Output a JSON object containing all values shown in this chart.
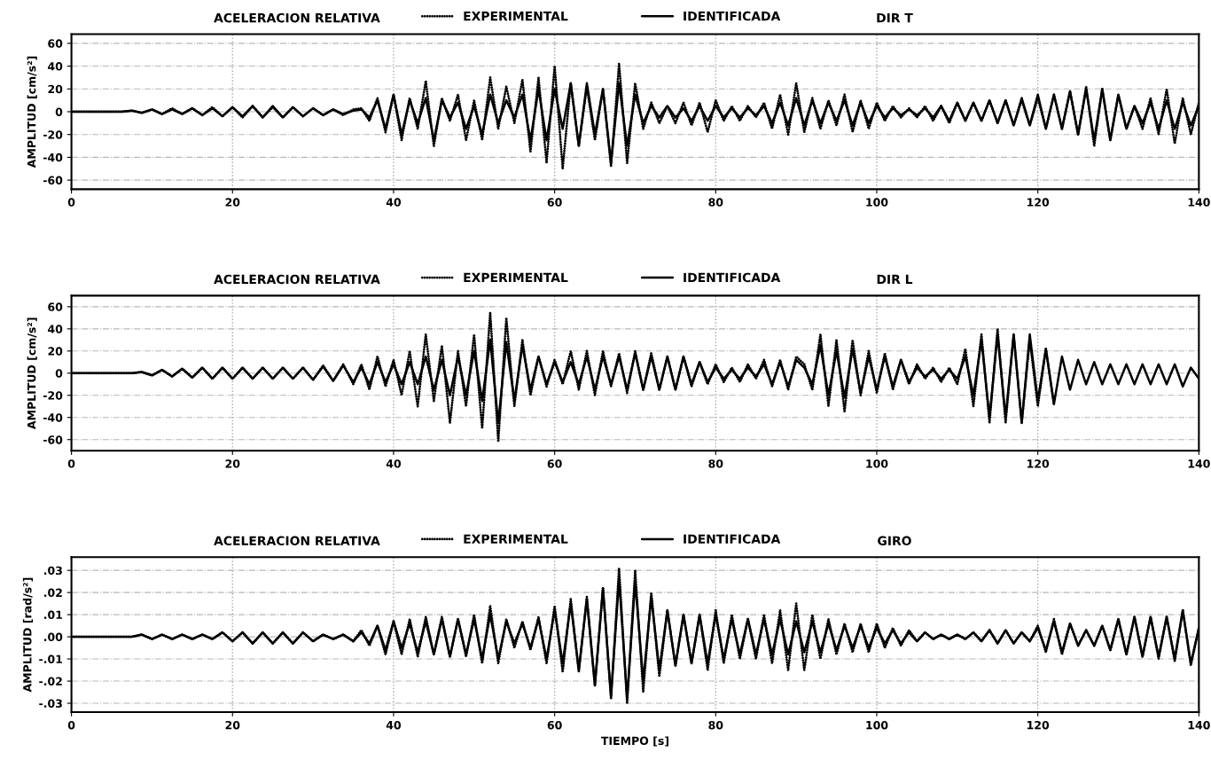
{
  "chart_data": [
    {
      "type": "line",
      "title": "ACELERACION RELATIVA",
      "subtitle": "DIR T",
      "ylabel": "AMPLITUD [cm/s²]",
      "x": [
        0,
        1.25,
        2.5,
        3.75,
        5,
        6.25,
        7.5,
        8.75,
        10,
        11.25,
        12.5,
        13.75,
        15,
        16.25,
        17.5,
        18.75,
        20,
        21.25,
        22.5,
        23.75,
        25,
        26.25,
        27.5,
        28.75,
        30,
        31.25,
        32.5,
        33.75,
        35,
        36,
        37,
        38,
        39,
        40,
        41,
        42,
        43,
        44,
        45,
        46,
        47,
        48,
        49,
        50,
        51,
        52,
        53,
        54,
        55,
        56,
        57,
        58,
        59,
        60,
        61,
        62,
        63,
        64,
        65,
        66,
        67,
        68,
        69,
        70,
        71,
        72,
        73,
        74,
        75,
        76,
        77,
        78,
        79,
        80,
        81,
        82,
        83,
        84,
        85,
        86,
        87,
        88,
        89,
        90,
        91,
        92,
        93,
        94,
        95,
        96,
        97,
        98,
        99,
        100,
        101,
        102,
        103,
        104,
        105,
        106,
        107,
        108,
        109,
        110,
        111,
        112,
        113,
        114,
        115,
        116,
        117,
        118,
        119,
        120,
        121,
        122,
        123,
        124,
        125,
        126,
        127,
        128,
        129,
        130,
        131,
        132,
        133,
        134,
        135,
        136,
        137,
        138,
        139,
        140
      ],
      "xlim": [
        0,
        140
      ],
      "xticks": [
        0,
        20,
        40,
        60,
        80,
        100,
        120,
        140
      ],
      "ylim": [
        -68,
        68
      ],
      "yticks": [
        -60,
        -40,
        -20,
        0,
        20,
        40,
        60
      ],
      "grid": true,
      "legend": "top",
      "series": [
        {
          "name": "EXPERIMENTAL",
          "color": "#000000",
          "line_style": "dotted",
          "values": [
            0,
            0,
            0,
            0,
            0,
            0,
            1,
            -1,
            2,
            -2,
            3,
            -2,
            3,
            -3,
            4,
            -4,
            4,
            -5,
            5,
            -5,
            4,
            -5,
            4,
            -4,
            3,
            -3,
            2,
            -3,
            2,
            3,
            -8,
            12,
            -18,
            15,
            -25,
            12,
            -15,
            27,
            -30,
            12,
            -8,
            15,
            -25,
            10,
            -25,
            30,
            -15,
            22,
            -10,
            28,
            -35,
            30,
            -45,
            40,
            -50,
            25,
            -30,
            22,
            -25,
            20,
            -48,
            42,
            -45,
            25,
            -15,
            8,
            -10,
            5,
            -10,
            8,
            -12,
            8,
            -18,
            10,
            -8,
            5,
            -8,
            5,
            -5,
            8,
            -15,
            15,
            -20,
            25,
            -18,
            12,
            -15,
            10,
            -12,
            15,
            -18,
            10,
            -15,
            8,
            -8,
            5,
            -5,
            3,
            -5,
            5,
            -8,
            5,
            -10,
            8,
            -8,
            8,
            -8,
            10,
            -10,
            10,
            -12,
            10,
            -12,
            12,
            -15,
            15,
            -15,
            18,
            -20,
            22,
            -30,
            20,
            -25,
            15,
            -15,
            5,
            -15,
            12,
            -20,
            20,
            -28,
            12,
            -20,
            8
          ]
        },
        {
          "name": "IDENTIFICADA",
          "color": "#000000",
          "line_style": "solid",
          "values": [
            0,
            0,
            0,
            0,
            0,
            0,
            1,
            -1,
            2,
            -2,
            2,
            -2,
            3,
            -3,
            3,
            -4,
            4,
            -4,
            5,
            -5,
            5,
            -5,
            4,
            -4,
            3,
            -3,
            2,
            -2,
            1,
            2,
            -5,
            10,
            -15,
            15,
            -20,
            10,
            -10,
            12,
            -25,
            10,
            -5,
            8,
            -15,
            5,
            -20,
            15,
            -10,
            10,
            -5,
            15,
            -25,
            20,
            -25,
            20,
            -15,
            25,
            -30,
            25,
            -20,
            20,
            -45,
            25,
            -30,
            15,
            -10,
            5,
            -5,
            5,
            -5,
            3,
            -8,
            5,
            -8,
            5,
            -5,
            3,
            -5,
            3,
            -3,
            5,
            -10,
            8,
            -12,
            12,
            -12,
            10,
            -10,
            8,
            -8,
            10,
            -12,
            8,
            -10,
            5,
            -5,
            3,
            -3,
            2,
            -3,
            3,
            -5,
            5,
            -8,
            8,
            -8,
            8,
            -8,
            10,
            -10,
            10,
            -12,
            12,
            -12,
            15,
            -15,
            15,
            -15,
            18,
            -20,
            20,
            -25,
            20,
            -25,
            15,
            -15,
            5,
            -10,
            8,
            -15,
            10,
            -15,
            8,
            -12,
            5
          ]
        }
      ]
    },
    {
      "type": "line",
      "title": "ACELERACION RELATIVA",
      "subtitle": "DIR L",
      "ylabel": "AMPLITUD [cm/s²]",
      "x": [
        0,
        1.25,
        2.5,
        3.75,
        5,
        6.25,
        7.5,
        8.75,
        10,
        11.25,
        12.5,
        13.75,
        15,
        16.25,
        17.5,
        18.75,
        20,
        21.25,
        22.5,
        23.75,
        25,
        26.25,
        27.5,
        28.75,
        30,
        31.25,
        32.5,
        33.75,
        35,
        36,
        37,
        38,
        39,
        40,
        41,
        42,
        43,
        44,
        45,
        46,
        47,
        48,
        49,
        50,
        51,
        52,
        53,
        54,
        55,
        56,
        57,
        58,
        59,
        60,
        61,
        62,
        63,
        64,
        65,
        66,
        67,
        68,
        69,
        70,
        71,
        72,
        73,
        74,
        75,
        76,
        77,
        78,
        79,
        80,
        81,
        82,
        83,
        84,
        85,
        86,
        87,
        88,
        89,
        90,
        91,
        92,
        93,
        94,
        95,
        96,
        97,
        98,
        99,
        100,
        101,
        102,
        103,
        104,
        105,
        106,
        107,
        108,
        109,
        110,
        111,
        112,
        113,
        114,
        115,
        116,
        117,
        118,
        119,
        120,
        121,
        122,
        123,
        124,
        125,
        126,
        127,
        128,
        129,
        130,
        131,
        132,
        133,
        134,
        135,
        136,
        137,
        138,
        139,
        140
      ],
      "xlim": [
        0,
        140
      ],
      "xticks": [
        0,
        20,
        40,
        60,
        80,
        100,
        120,
        140
      ],
      "ylim": [
        -70,
        70
      ],
      "yticks": [
        -60,
        -40,
        -20,
        0,
        20,
        40,
        60
      ],
      "grid": true,
      "legend": "top",
      "series": [
        {
          "name": "EXPERIMENTAL",
          "color": "#000000",
          "line_style": "dotted",
          "values": [
            0,
            0,
            0,
            0,
            0,
            0,
            0,
            1,
            -2,
            3,
            -3,
            4,
            -4,
            5,
            -5,
            5,
            -5,
            5,
            -5,
            5,
            -5,
            5,
            -5,
            5,
            -6,
            7,
            -7,
            8,
            -10,
            8,
            -15,
            15,
            -12,
            12,
            -20,
            20,
            -30,
            35,
            -25,
            25,
            -45,
            20,
            -30,
            35,
            -50,
            55,
            -62,
            50,
            -30,
            30,
            -20,
            15,
            -12,
            12,
            -10,
            20,
            -15,
            20,
            -20,
            20,
            -12,
            18,
            -18,
            20,
            -15,
            18,
            -15,
            15,
            -15,
            15,
            -12,
            10,
            -10,
            8,
            -8,
            5,
            -8,
            8,
            -5,
            12,
            -12,
            12,
            -15,
            15,
            8,
            -15,
            35,
            -30,
            30,
            -35,
            30,
            -20,
            20,
            -18,
            18,
            -15,
            12,
            -10,
            8,
            -5,
            5,
            -8,
            5,
            -10,
            22,
            -30,
            35,
            -45,
            40,
            -45,
            35,
            -45,
            30,
            -30,
            22,
            -28,
            null,
            null,
            null,
            null,
            null,
            null,
            null,
            null,
            null,
            null,
            null,
            null,
            null,
            null,
            null,
            null,
            null,
            null
          ]
        },
        {
          "name": "IDENTIFICADA",
          "color": "#000000",
          "line_style": "solid",
          "values": [
            0,
            0,
            0,
            0,
            0,
            0,
            0,
            1,
            -2,
            3,
            -3,
            4,
            -4,
            5,
            -5,
            5,
            -5,
            5,
            -5,
            5,
            -5,
            5,
            -5,
            5,
            -6,
            6,
            -7,
            7,
            -8,
            5,
            -10,
            10,
            -8,
            8,
            -10,
            10,
            -10,
            15,
            -15,
            12,
            -20,
            15,
            -20,
            20,
            -25,
            30,
            -45,
            28,
            -25,
            25,
            -15,
            15,
            -10,
            10,
            -8,
            10,
            -10,
            15,
            -15,
            15,
            -10,
            15,
            -15,
            18,
            -15,
            15,
            -15,
            15,
            -15,
            15,
            -10,
            10,
            -8,
            5,
            -5,
            3,
            -5,
            5,
            -3,
            8,
            -10,
            10,
            -12,
            12,
            5,
            -10,
            25,
            -20,
            20,
            -22,
            22,
            -18,
            15,
            -15,
            15,
            -12,
            12,
            -8,
            5,
            -3,
            3,
            -5,
            3,
            -5,
            15,
            -20,
            30,
            -40,
            35,
            -40,
            35,
            -45,
            35,
            -25,
            22,
            -28,
            15,
            -15,
            12,
            -10,
            10,
            -10,
            8,
            -10,
            8,
            -10,
            8,
            -10,
            8,
            -10,
            8,
            -12,
            5,
            -5
          ]
        }
      ]
    },
    {
      "type": "line",
      "title": "ACELERACION RELATIVA",
      "subtitle": "GIRO",
      "ylabel": "AMPLITUD [rad/s²]",
      "xlabel": "TIEMPO [s]",
      "x": [
        0,
        1.25,
        2.5,
        3.75,
        5,
        6.25,
        7.5,
        8.75,
        10,
        11.25,
        12.5,
        13.75,
        15,
        16.25,
        17.5,
        18.75,
        20,
        21.25,
        22.5,
        23.75,
        25,
        26.25,
        27.5,
        28.75,
        30,
        31.25,
        32.5,
        33.75,
        35,
        36,
        37,
        38,
        39,
        40,
        41,
        42,
        43,
        44,
        45,
        46,
        47,
        48,
        49,
        50,
        51,
        52,
        53,
        54,
        55,
        56,
        57,
        58,
        59,
        60,
        61,
        62,
        63,
        64,
        65,
        66,
        67,
        68,
        69,
        70,
        71,
        72,
        73,
        74,
        75,
        76,
        77,
        78,
        79,
        80,
        81,
        82,
        83,
        84,
        85,
        86,
        87,
        88,
        89,
        90,
        91,
        92,
        93,
        94,
        95,
        96,
        97,
        98,
        99,
        100,
        101,
        102,
        103,
        104,
        105,
        106,
        107,
        108,
        109,
        110,
        111,
        112,
        113,
        114,
        115,
        116,
        117,
        118,
        119,
        120,
        121,
        122,
        123,
        124,
        125,
        126,
        127,
        128,
        129,
        130,
        131,
        132,
        133,
        134,
        135,
        136,
        137,
        138,
        139,
        140
      ],
      "xlim": [
        0,
        140
      ],
      "xticks": [
        0,
        20,
        40,
        60,
        80,
        100,
        120,
        140
      ],
      "ylim": [
        -0.034,
        0.036
      ],
      "yticks": [
        {
          "value": -0.03,
          "label": "-.03"
        },
        {
          "value": -0.02,
          "label": "-.02"
        },
        {
          "value": -0.01,
          "label": "-.01"
        },
        {
          "value": 0,
          "label": ".00"
        },
        {
          "value": 0.01,
          "label": ".01"
        },
        {
          "value": 0.02,
          "label": ".02"
        },
        {
          "value": 0.03,
          "label": ".03"
        }
      ],
      "grid": true,
      "legend": "top",
      "series": [
        {
          "name": "EXPERIMENTAL",
          "color": "#000000",
          "line_style": "dotted",
          "values": [
            0,
            0,
            0,
            0,
            0,
            0,
            0,
            0.001,
            -0.001,
            0.001,
            -0.001,
            0.001,
            -0.001,
            0.001,
            -0.001,
            0.002,
            -0.002,
            0.002,
            -0.003,
            0.002,
            -0.003,
            0.002,
            -0.003,
            0.002,
            -0.002,
            0.001,
            -0.001,
            0.001,
            -0.002,
            0.003,
            -0.004,
            0.005,
            -0.008,
            0.007,
            -0.008,
            0.008,
            -0.009,
            0.009,
            -0.008,
            0.009,
            -0.009,
            0.008,
            -0.009,
            0.01,
            -0.012,
            0.014,
            -0.012,
            0.008,
            -0.005,
            0.007,
            -0.006,
            0.009,
            -0.012,
            0.014,
            -0.016,
            0.017,
            -0.016,
            0.018,
            -0.022,
            0.022,
            -0.028,
            0.031,
            -0.03,
            0.03,
            -0.025,
            0.02,
            -0.018,
            0.012,
            -0.013,
            0.01,
            -0.012,
            0.01,
            -0.015,
            0.012,
            -0.012,
            0.01,
            -0.01,
            0.008,
            -0.01,
            0.01,
            -0.012,
            0.012,
            -0.015,
            0.015,
            -0.015,
            0.01,
            -0.01,
            0.008,
            -0.008,
            0.006,
            -0.007,
            0.006,
            -0.007,
            0.006,
            -0.005,
            0.004,
            -0.004,
            0.003,
            -0.002,
            0.002,
            -0.001,
            0.001,
            -0.001,
            0.001,
            -0.001,
            0.002,
            -0.002,
            0.003,
            -0.003,
            0.003,
            -0.003,
            0.002,
            -0.002,
            0.005,
            -0.007,
            0.008,
            -0.008,
            0.006,
            -0.004,
            0.003,
            -0.004,
            0.005,
            -0.006,
            0.008,
            -0.008,
            0.009,
            -0.009,
            0.009,
            -0.01,
            0.009,
            -0.011,
            0.012,
            -0.013,
            0.004
          ]
        },
        {
          "name": "IDENTIFICADA",
          "color": "#000000",
          "line_style": "solid",
          "values": [
            0,
            0,
            0,
            0,
            0,
            0,
            0,
            0.001,
            -0.001,
            0.001,
            -0.001,
            0.001,
            -0.001,
            0.001,
            -0.001,
            0.002,
            -0.002,
            0.002,
            -0.003,
            0.002,
            -0.003,
            0.002,
            -0.003,
            0.002,
            -0.002,
            0.001,
            -0.001,
            0.001,
            -0.002,
            0.002,
            -0.003,
            0.005,
            -0.006,
            0.007,
            -0.005,
            0.006,
            -0.007,
            0.007,
            -0.008,
            0.008,
            -0.009,
            0.008,
            -0.008,
            0.008,
            -0.01,
            0.01,
            -0.01,
            0.007,
            -0.003,
            0.006,
            -0.005,
            0.008,
            -0.01,
            0.012,
            -0.012,
            0.015,
            -0.015,
            0.017,
            -0.022,
            0.022,
            -0.027,
            0.026,
            -0.028,
            0.025,
            -0.02,
            0.018,
            -0.015,
            0.012,
            -0.013,
            0.01,
            -0.012,
            0.01,
            -0.012,
            0.01,
            -0.01,
            0.008,
            -0.008,
            0.008,
            -0.008,
            0.008,
            -0.008,
            0.008,
            -0.008,
            0.007,
            -0.007,
            0.007,
            -0.007,
            0.006,
            -0.006,
            0.005,
            -0.005,
            0.005,
            -0.005,
            0.004,
            -0.003,
            0.003,
            -0.003,
            0.002,
            -0.002,
            0.002,
            -0.001,
            0.001,
            -0.001,
            0.001,
            -0.001,
            0.002,
            -0.002,
            0.003,
            -0.003,
            0.003,
            -0.003,
            0.002,
            -0.002,
            0.004,
            -0.006,
            0.007,
            -0.007,
            0.006,
            -0.004,
            0.003,
            -0.004,
            0.005,
            -0.006,
            0.008,
            -0.008,
            0.009,
            -0.009,
            0.009,
            -0.009,
            0.009,
            -0.01,
            0.012,
            -0.012,
            0.004
          ]
        }
      ]
    }
  ]
}
